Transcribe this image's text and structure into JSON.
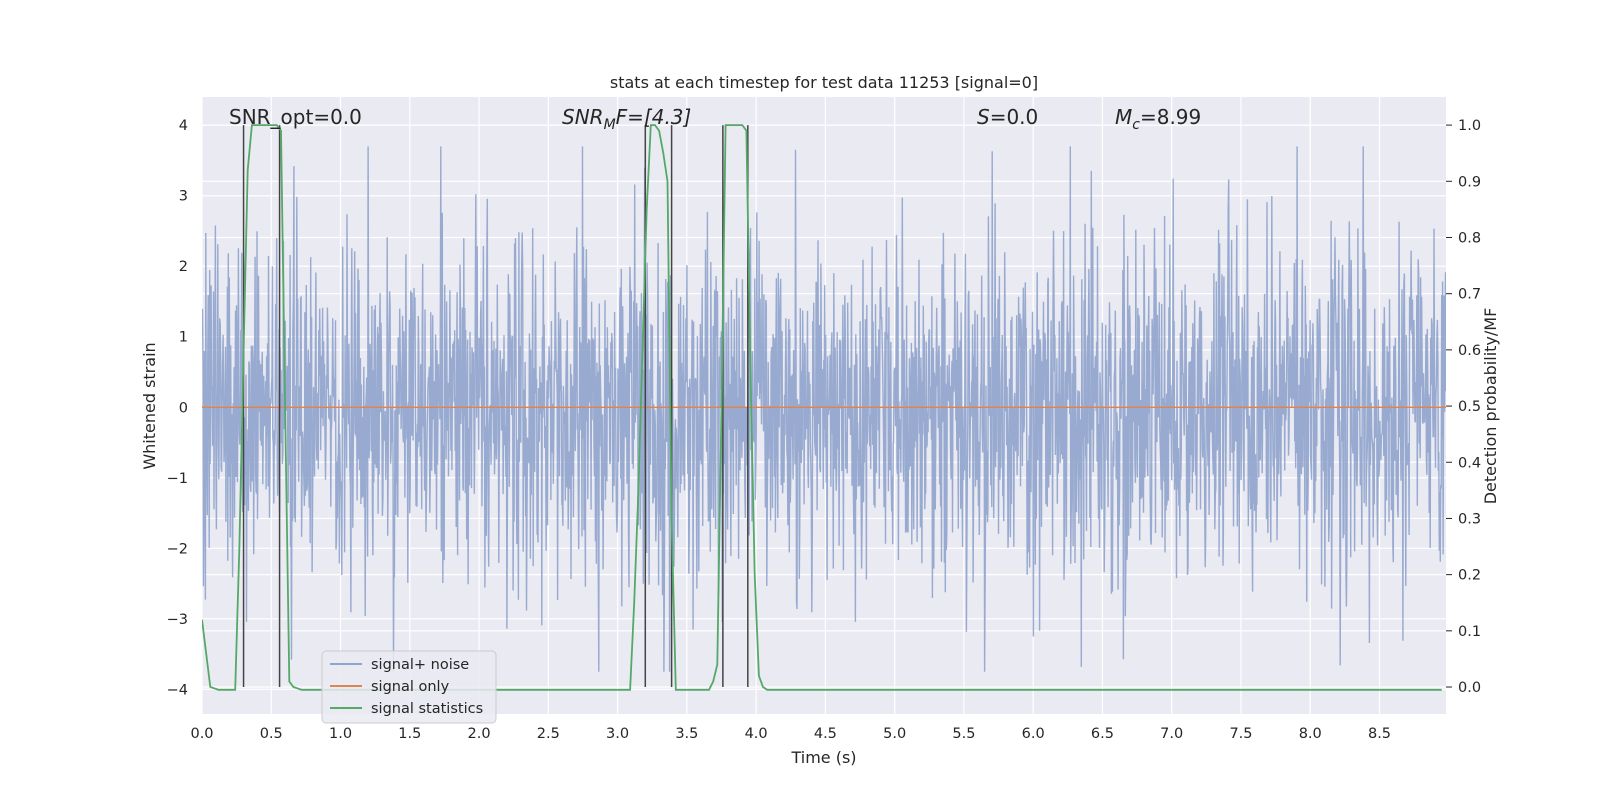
{
  "chart_data": {
    "type": "line",
    "title": "stats at each timestep for test data 11253 [signal=0]",
    "xlabel": "Time (s)",
    "ylabel": "Whitened strain",
    "ylabel_right": "Detection probability/MF",
    "xlim": [
      0.0,
      8.98
    ],
    "ylim": [
      -4.35,
      4.4
    ],
    "ylim_right": [
      -0.048,
      1.05
    ],
    "x_ticks": [
      "0.0",
      "0.5",
      "1.0",
      "1.5",
      "2.0",
      "2.5",
      "3.0",
      "3.5",
      "4.0",
      "4.5",
      "5.0",
      "5.5",
      "6.0",
      "6.5",
      "7.0",
      "7.5",
      "8.0",
      "8.5"
    ],
    "y_ticks": [
      "4",
      "3",
      "2",
      "1",
      "0",
      "−1",
      "−2",
      "−3",
      "−4"
    ],
    "y_ticks_right": [
      "1.0",
      "0.9",
      "0.8",
      "0.7",
      "0.6",
      "0.5",
      "0.4",
      "0.3",
      "0.2",
      "0.1",
      "0.0"
    ],
    "grid": true,
    "legend_position": "lower-left",
    "annotations": {
      "snr_opt": "SNR_opt=0.0",
      "snr_mf_main": "SNR",
      "snr_mf_sub": "M",
      "snr_mf_rest": "F=[4.3]",
      "s_main": "S",
      "s_rest": "=0.0",
      "mc_main": "M",
      "mc_sub": "c",
      "mc_rest": "=8.99"
    },
    "series": [
      {
        "name": "signal+ noise",
        "color": "#8fa3cc",
        "description_values": "whitened strain noise, amplitude mostly within ±2.5 with peaks near ±3.7"
      },
      {
        "name": "signal only",
        "color": "#dd8452",
        "values_constant": 0.0
      },
      {
        "name": "signal statistics",
        "color": "#55a868",
        "axis": "right",
        "x": [
          0.0,
          0.06,
          0.12,
          0.18,
          0.24,
          0.27,
          0.3,
          0.33,
          0.36,
          0.39,
          0.42,
          0.45,
          0.48,
          0.51,
          0.54,
          0.57,
          0.6,
          0.63,
          0.66,
          0.72,
          0.78,
          0.84,
          0.9,
          1.0,
          1.5,
          2.0,
          2.5,
          3.0,
          3.09,
          3.12,
          3.15,
          3.18,
          3.21,
          3.24,
          3.27,
          3.3,
          3.33,
          3.36,
          3.39,
          3.42,
          3.45,
          3.48,
          3.54,
          3.6,
          3.66,
          3.69,
          3.72,
          3.75,
          3.78,
          3.81,
          3.84,
          3.87,
          3.9,
          3.93,
          3.96,
          3.99,
          4.02,
          4.05,
          4.08,
          4.2,
          4.5,
          5.0,
          5.5,
          6.0,
          6.5,
          7.0,
          7.5,
          8.0,
          8.5,
          8.95
        ],
        "y": [
          0.12,
          0.0,
          -0.005,
          -0.005,
          -0.005,
          0.25,
          0.6,
          0.92,
          1.0,
          1.0,
          1.0,
          1.0,
          1.0,
          1.0,
          1.0,
          0.99,
          0.5,
          0.01,
          0.0,
          -0.005,
          -0.005,
          -0.005,
          -0.005,
          -0.005,
          -0.005,
          -0.005,
          -0.005,
          -0.005,
          -0.005,
          0.15,
          0.35,
          0.6,
          0.85,
          1.0,
          1.0,
          0.99,
          0.95,
          0.9,
          0.3,
          -0.005,
          -0.005,
          -0.005,
          -0.005,
          -0.005,
          -0.005,
          0.01,
          0.04,
          0.5,
          1.0,
          1.0,
          1.0,
          1.0,
          1.0,
          0.99,
          0.55,
          0.2,
          0.02,
          0.0,
          -0.005,
          -0.005,
          -0.005,
          -0.005,
          -0.005,
          -0.005,
          -0.005,
          -0.005,
          -0.005,
          -0.005,
          -0.005,
          -0.005
        ]
      }
    ],
    "vertical_markers_x": [
      0.3,
      0.56,
      3.2,
      3.39,
      3.76,
      3.94
    ]
  }
}
